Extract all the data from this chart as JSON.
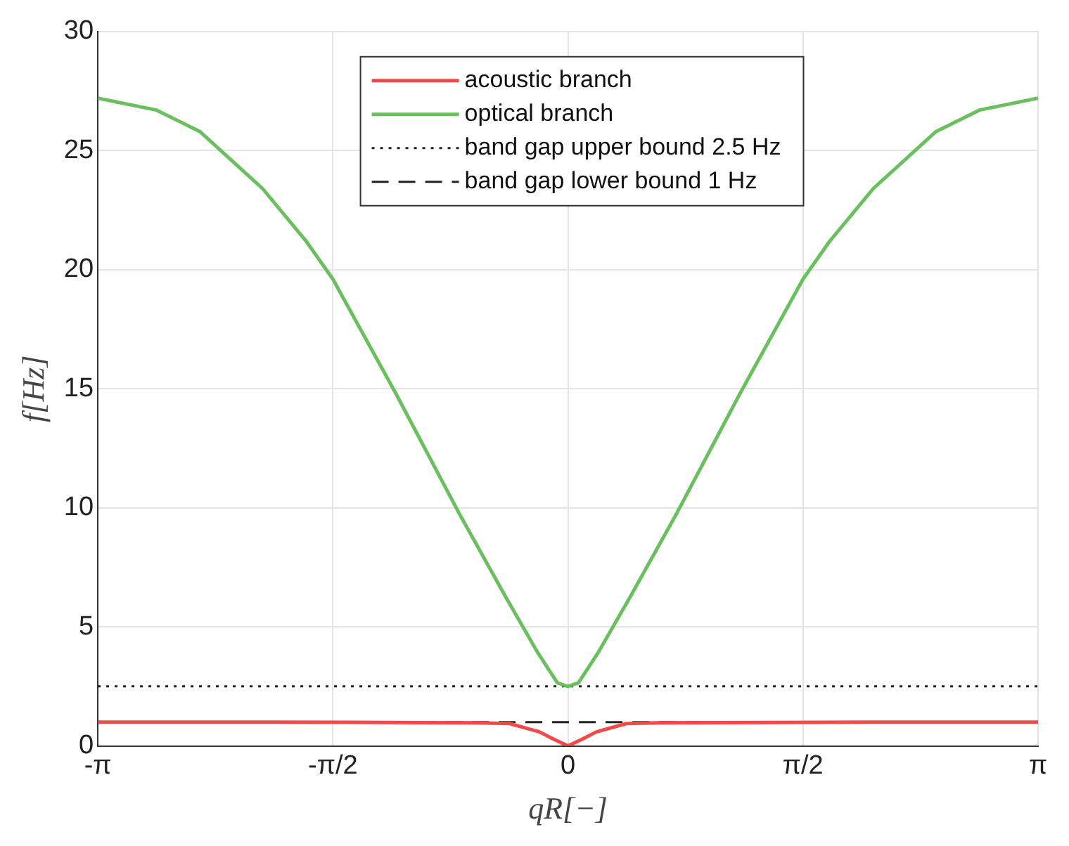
{
  "chart_data": {
    "type": "line",
    "xlabel": "qR[−]",
    "ylabel": "f[Hz]",
    "xlim": [
      -3.1416,
      3.1416
    ],
    "xticks": [
      {
        "value": -3.1416,
        "label": "-π"
      },
      {
        "value": -1.5708,
        "label": "-π/2"
      },
      0,
      {
        "value": 1.5708,
        "label": "π/2"
      },
      {
        "value": 3.1416,
        "label": "π"
      }
    ],
    "ylim": [
      0,
      30
    ],
    "yticks": [
      0,
      5,
      10,
      15,
      20,
      25,
      30
    ],
    "series": [
      {
        "name": "acoustic branch",
        "color": "#f04a4a",
        "x": [
          -3.1416,
          -2,
          -1,
          -0.6,
          -0.39,
          -0.19,
          -0.1,
          0,
          0.1,
          0.19,
          0.39,
          0.6,
          1,
          2,
          3.1416
        ],
        "values": [
          1,
          1,
          0.98,
          0.97,
          0.94,
          0.59,
          0.3,
          0,
          0.3,
          0.59,
          0.94,
          0.97,
          0.98,
          1,
          1
        ]
      },
      {
        "name": "optical branch",
        "color": "#6abf5e",
        "x": [
          -3.1416,
          -2.75,
          -2.46,
          -2.04,
          -1.75,
          -1.5708,
          -1.15,
          -0.73,
          -0.42,
          -0.2,
          -0.07,
          0,
          0.07,
          0.2,
          0.42,
          0.73,
          1.15,
          1.5708,
          1.75,
          2.04,
          2.46,
          2.75,
          3.1416
        ],
        "values": [
          27.2,
          26.7,
          25.8,
          23.4,
          21.2,
          19.6,
          14.8,
          9.8,
          6.3,
          3.9,
          2.65,
          2.5,
          2.65,
          3.9,
          6.3,
          9.8,
          14.8,
          19.6,
          21.2,
          23.4,
          25.8,
          26.7,
          27.2
        ]
      }
    ],
    "ref_lines": [
      {
        "axis": "y",
        "value": 2.5,
        "label": "band gap upper bound 2.5 Hz",
        "color": "#222222",
        "line_style": "dotted"
      },
      {
        "axis": "y",
        "value": 1,
        "label": "band gap lower bound 1 Hz",
        "color": "#222222",
        "line_style": "dashed"
      }
    ],
    "grid": true,
    "legend": "top",
    "line_style": "solid",
    "marker": "none"
  }
}
